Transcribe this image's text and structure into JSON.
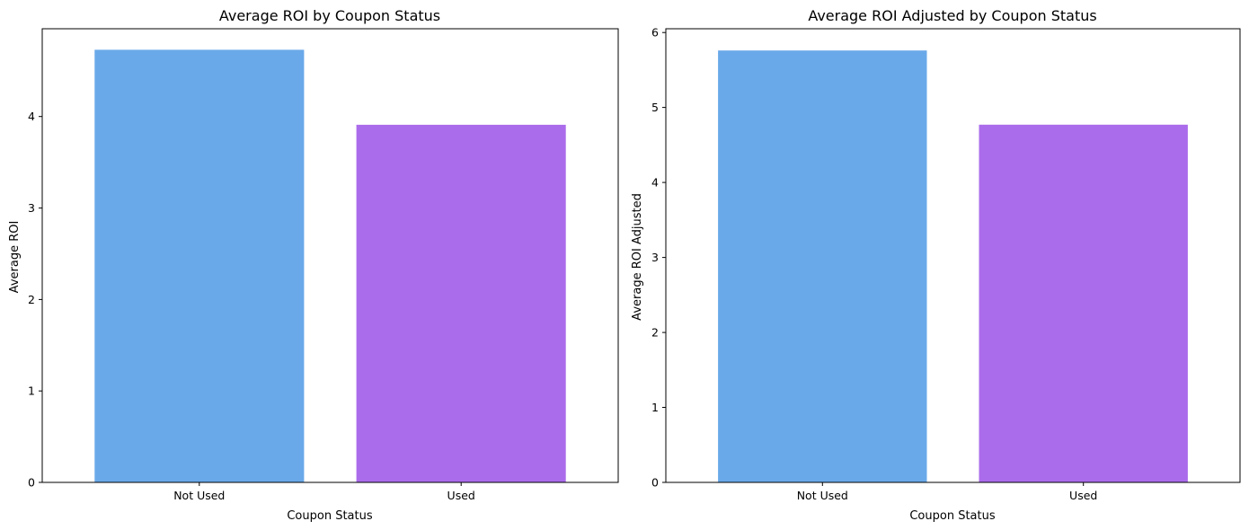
{
  "chart_data": [
    {
      "type": "bar",
      "title": "Average ROI by Coupon Status",
      "xlabel": "Coupon Status",
      "ylabel": "Average ROI",
      "categories": [
        "Not Used",
        "Used"
      ],
      "values": [
        4.73,
        3.91
      ],
      "colors": [
        "#6aa9e9",
        "#ab6ceb"
      ],
      "ylim": [
        0,
        4.96
      ],
      "yticks": [
        0,
        1,
        2,
        3,
        4
      ],
      "grid": false
    },
    {
      "type": "bar",
      "title": "Average ROI Adjusted by Coupon Status",
      "xlabel": "Coupon Status",
      "ylabel": "Average ROI Adjusted",
      "categories": [
        "Not Used",
        "Used"
      ],
      "values": [
        5.76,
        4.77
      ],
      "colors": [
        "#6aa9e9",
        "#ab6ceb"
      ],
      "ylim": [
        0,
        6.05
      ],
      "yticks": [
        0,
        1,
        2,
        3,
        4,
        5,
        6
      ],
      "grid": false
    }
  ]
}
